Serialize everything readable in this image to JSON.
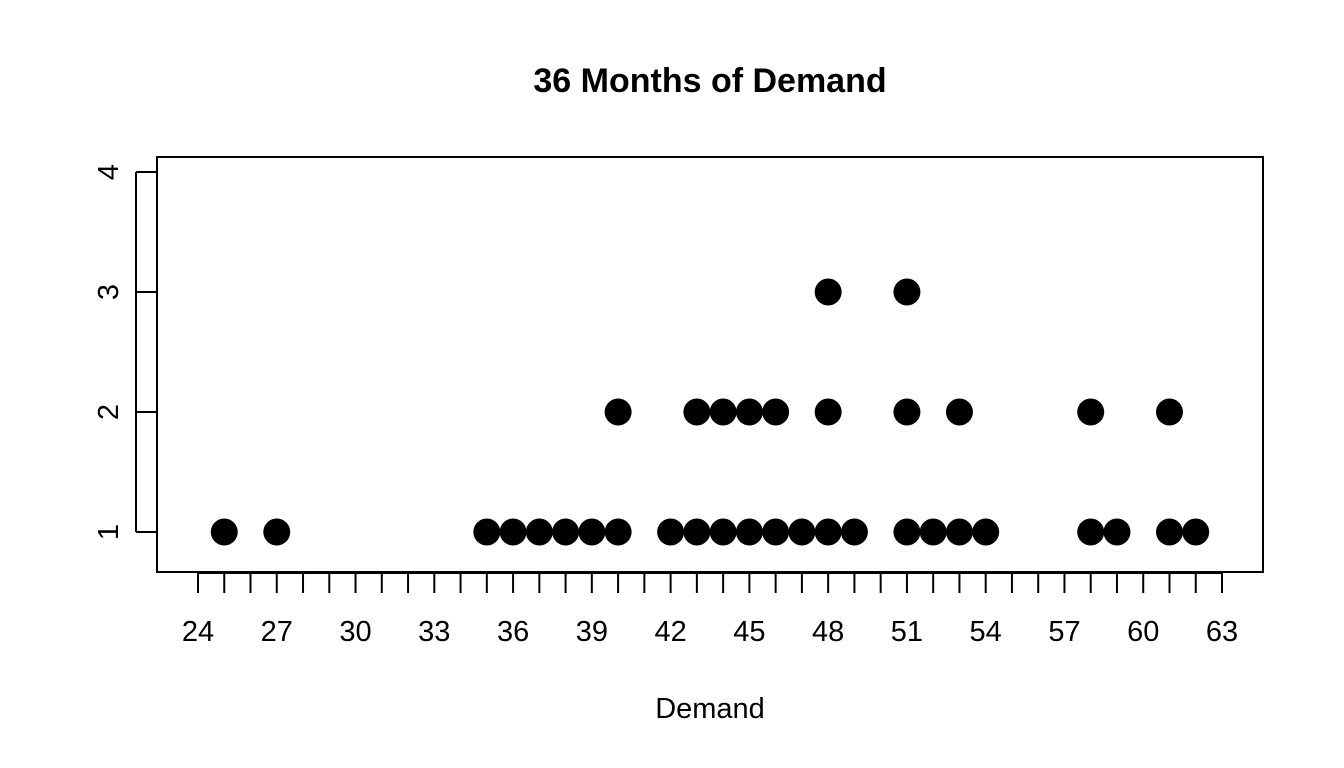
{
  "chart_data": {
    "type": "scatter",
    "subtype": "dot-plot",
    "title": "36 Months of Demand",
    "xlabel": "Demand",
    "ylabel": "",
    "xlim": [
      23,
      65
    ],
    "ylim": [
      0.9,
      4
    ],
    "x_ticks": [
      24,
      25,
      26,
      27,
      28,
      29,
      30,
      31,
      32,
      33,
      34,
      35,
      36,
      37,
      38,
      39,
      40,
      41,
      42,
      43,
      44,
      45,
      46,
      47,
      48,
      49,
      50,
      51,
      52,
      53,
      54,
      55,
      56,
      57,
      58,
      59,
      60,
      61,
      62,
      63
    ],
    "x_tick_labels": [
      24,
      27,
      30,
      33,
      36,
      39,
      42,
      45,
      48,
      51,
      54,
      57,
      60,
      63
    ],
    "y_ticks": [
      1,
      2,
      3,
      4
    ],
    "grid": false,
    "legend": "none",
    "point_color": "#000000",
    "points": [
      {
        "x": 25,
        "y": 1
      },
      {
        "x": 27,
        "y": 1
      },
      {
        "x": 35,
        "y": 1
      },
      {
        "x": 36,
        "y": 1
      },
      {
        "x": 37,
        "y": 1
      },
      {
        "x": 38,
        "y": 1
      },
      {
        "x": 39,
        "y": 1
      },
      {
        "x": 40,
        "y": 1
      },
      {
        "x": 40,
        "y": 2
      },
      {
        "x": 42,
        "y": 1
      },
      {
        "x": 43,
        "y": 1
      },
      {
        "x": 43,
        "y": 2
      },
      {
        "x": 44,
        "y": 1
      },
      {
        "x": 44,
        "y": 2
      },
      {
        "x": 45,
        "y": 1
      },
      {
        "x": 45,
        "y": 2
      },
      {
        "x": 46,
        "y": 1
      },
      {
        "x": 46,
        "y": 2
      },
      {
        "x": 47,
        "y": 1
      },
      {
        "x": 48,
        "y": 1
      },
      {
        "x": 48,
        "y": 2
      },
      {
        "x": 48,
        "y": 3
      },
      {
        "x": 49,
        "y": 1
      },
      {
        "x": 51,
        "y": 1
      },
      {
        "x": 51,
        "y": 2
      },
      {
        "x": 51,
        "y": 3
      },
      {
        "x": 52,
        "y": 1
      },
      {
        "x": 53,
        "y": 1
      },
      {
        "x": 53,
        "y": 2
      },
      {
        "x": 54,
        "y": 1
      },
      {
        "x": 58,
        "y": 1
      },
      {
        "x": 58,
        "y": 2
      },
      {
        "x": 59,
        "y": 1
      },
      {
        "x": 61,
        "y": 1
      },
      {
        "x": 61,
        "y": 2
      },
      {
        "x": 62,
        "y": 1
      }
    ]
  }
}
